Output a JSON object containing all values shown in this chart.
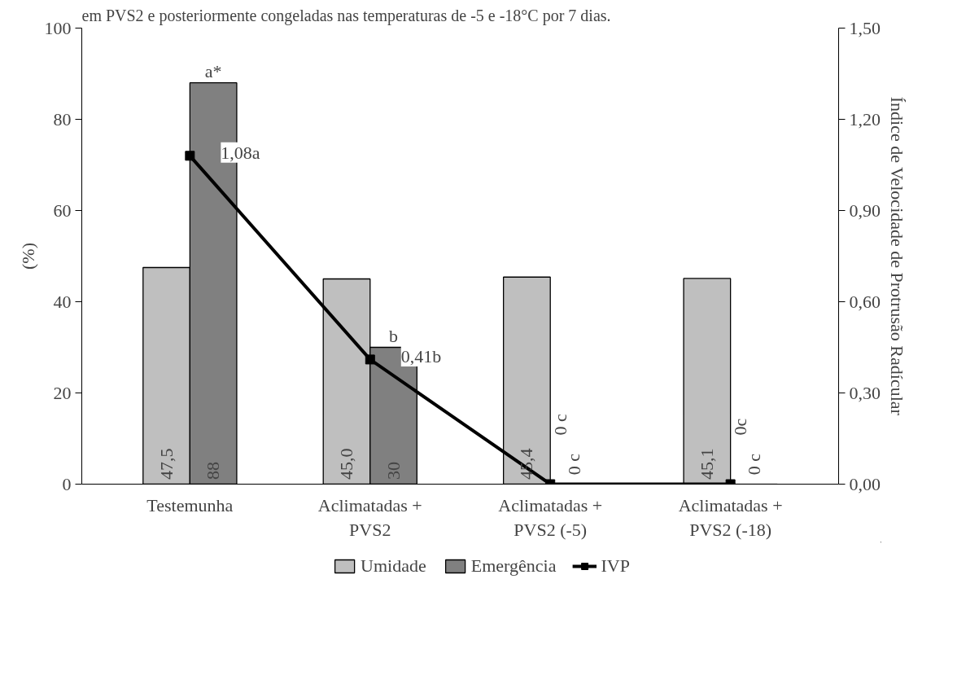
{
  "chart_data": {
    "type": "bar",
    "annotations": [
      "em PVS2 e posteriormente congeladas nas temperaturas de -5 e -18°C por 7 dias.",
      {
        "text": "a*",
        "x": "Testemunha",
        "y": 88
      },
      {
        "text": "b",
        "x": "Aclimatadas +\nPVS2",
        "y": 30
      }
    ],
    "categories": [
      "Testemunha",
      "Aclimatadas +\nPVS2",
      "Aclimatadas +\nPVS2 (-5)",
      "Aclimatadas +\nPVS2 (-18)"
    ],
    "series": [
      {
        "name": "Umidade",
        "color": "#bfbfbf",
        "values": [
          47.5,
          45.0,
          45.4,
          45.1
        ],
        "value_labels": [
          "47,5",
          "45,0",
          "45,4",
          "45,1"
        ]
      },
      {
        "name": "Emergência",
        "color": "#808080",
        "values": [
          88,
          30,
          0,
          0
        ],
        "value_labels": [
          "88",
          "30",
          "0 c",
          "0 c"
        ]
      },
      {
        "name": "IVP",
        "type": "line",
        "axis": "y2",
        "color": "#000000",
        "values": [
          1.08,
          0.41,
          0,
          0
        ],
        "value_labels": [
          "1,08a",
          "0,41b",
          "0 c",
          "0c"
        ]
      }
    ],
    "ylabel": "(%)",
    "y2label": "Índice de Velocidade de Protrusão Radícular",
    "ylim": [
      0,
      100
    ],
    "yticks": [
      0,
      20,
      40,
      60,
      80,
      100
    ],
    "y2lim": [
      0,
      1.5
    ],
    "y2ticks": [
      {
        "value": 0,
        "label": "0,00"
      },
      {
        "value": 0.3,
        "label": "0,30"
      },
      {
        "value": 0.6,
        "label": "0,60"
      },
      {
        "value": 0.9,
        "label": "0,90"
      },
      {
        "value": 1.2,
        "label": "1,20"
      },
      {
        "value": 1.5,
        "label": "1,50"
      }
    ],
    "marker": "square",
    "grid": false,
    "legend": "bottom"
  }
}
